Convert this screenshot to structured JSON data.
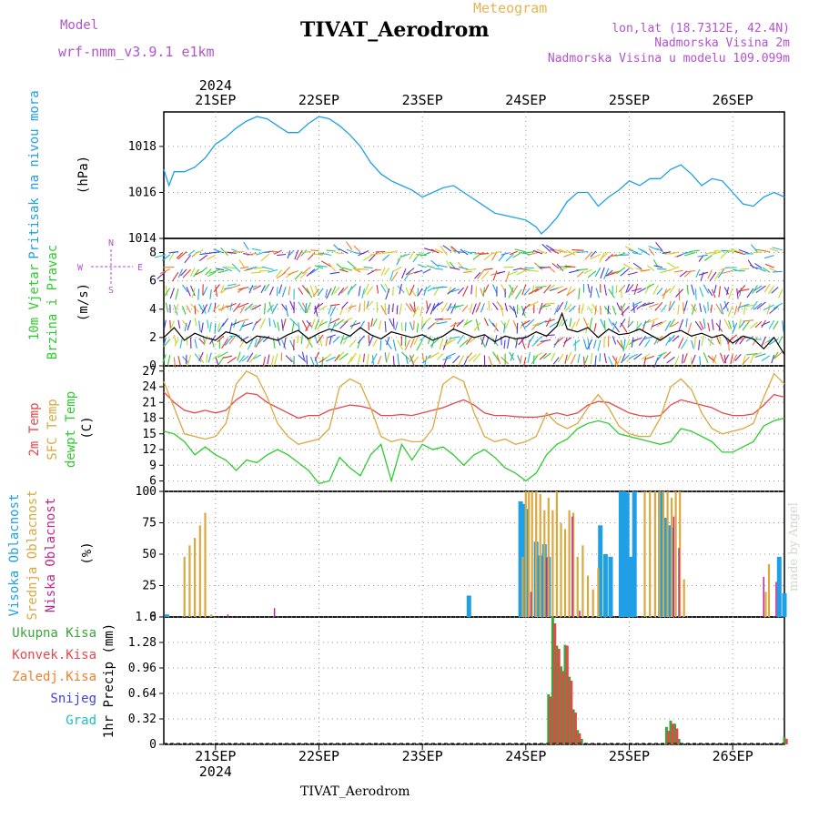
{
  "header": {
    "title": "TIVAT_Aerodrom",
    "meteogram_label": "Meteogram",
    "model_label": "Model",
    "model_name": "wrf-nmm_v3.9.1 e1km",
    "lonlat": "lon,lat (18.7312E, 42.4N)",
    "elevation": "Nadmorska Visina 2m",
    "model_elevation": "Nadmorska Visina u modelu 109.099m",
    "footer_station": "TIVAT_Aerodrom",
    "watermark": "made by Angel"
  },
  "colors": {
    "pressure": "#1fa0e6",
    "wind_speed": "#000000",
    "temp2m": "#e8474a",
    "sfc_temp": "#dba83f",
    "dewpoint": "#2ecc2e",
    "cloud_high": "#1fa0e6",
    "cloud_mid": "#dba83f",
    "cloud_low": "#c0288f",
    "precip_total": "#3aa53a",
    "precip_conv": "#e8474a",
    "precip_frozen": "#f08030",
    "snow": "#4040e0",
    "graupel": "#20c0c0"
  },
  "chart_data": [
    {
      "type": "line",
      "panel": "pressure",
      "ylabel_title": "Pritisak na nivou mora",
      "ylabel_unit": "(hPa)",
      "x_start_day": 20.5,
      "x_end_day": 26.5,
      "ylim": [
        1014,
        1019.5
      ],
      "yticks": [
        "1014",
        "1016",
        "1018"
      ],
      "ytick_values": [
        1014,
        1016,
        1018
      ],
      "x_day": [
        20.5,
        20.55,
        20.6,
        20.7,
        20.8,
        20.9,
        21.0,
        21.1,
        21.2,
        21.3,
        21.4,
        21.5,
        21.6,
        21.7,
        21.8,
        21.9,
        22.0,
        22.1,
        22.2,
        22.3,
        22.4,
        22.5,
        22.6,
        22.7,
        22.8,
        22.9,
        23.0,
        23.1,
        23.2,
        23.3,
        23.4,
        23.5,
        23.6,
        23.7,
        23.8,
        23.9,
        24.0,
        24.1,
        24.15,
        24.2,
        24.3,
        24.4,
        24.5,
        24.6,
        24.7,
        24.8,
        24.9,
        25.0,
        25.1,
        25.2,
        25.3,
        25.4,
        25.5,
        25.6,
        25.7,
        25.8,
        25.9,
        26.0,
        26.1,
        26.2,
        26.3,
        26.4,
        26.5
      ],
      "values": [
        1017.0,
        1016.3,
        1016.9,
        1016.9,
        1017.1,
        1017.5,
        1018.1,
        1018.4,
        1018.8,
        1019.1,
        1019.3,
        1019.2,
        1018.9,
        1018.6,
        1018.6,
        1019.0,
        1019.3,
        1019.2,
        1018.9,
        1018.5,
        1018.0,
        1017.3,
        1016.8,
        1016.5,
        1016.3,
        1016.1,
        1015.8,
        1016.0,
        1016.2,
        1016.3,
        1016.0,
        1015.7,
        1015.4,
        1015.1,
        1015.0,
        1014.9,
        1014.8,
        1014.5,
        1014.2,
        1014.4,
        1014.9,
        1015.6,
        1016.0,
        1016.0,
        1015.4,
        1015.8,
        1016.1,
        1016.5,
        1016.3,
        1016.6,
        1016.6,
        1017.0,
        1017.2,
        1016.8,
        1016.3,
        1016.6,
        1016.5,
        1016.0,
        1015.5,
        1015.4,
        1015.8,
        1016.0,
        1015.8
      ]
    },
    {
      "type": "line",
      "panel": "wind",
      "ylabel_title": "10m Vjetar",
      "ylabel_title2": "Brzina i Pravac",
      "ylabel_unit": "(m/s)",
      "compass": [
        "N",
        "E",
        "S",
        "W"
      ],
      "ylim": [
        0,
        9
      ],
      "yticks": [
        "0",
        "2",
        "4",
        "6",
        "8"
      ],
      "ytick_values": [
        0,
        2,
        4,
        6,
        8
      ],
      "x_day": [
        20.5,
        20.6,
        20.7,
        20.8,
        20.9,
        21.0,
        21.1,
        21.2,
        21.3,
        21.4,
        21.5,
        21.6,
        21.7,
        21.8,
        21.9,
        22.0,
        22.1,
        22.2,
        22.3,
        22.4,
        22.5,
        22.6,
        22.7,
        22.8,
        22.9,
        23.0,
        23.1,
        23.2,
        23.3,
        23.4,
        23.5,
        23.6,
        23.7,
        23.8,
        23.9,
        24.0,
        24.1,
        24.2,
        24.3,
        24.35,
        24.4,
        24.5,
        24.6,
        24.7,
        24.8,
        24.9,
        25.0,
        25.1,
        25.2,
        25.3,
        25.4,
        25.5,
        25.6,
        25.7,
        25.8,
        25.9,
        26.0,
        26.1,
        26.2,
        26.3,
        26.4,
        26.5
      ],
      "values": [
        2.0,
        2.7,
        1.8,
        2.3,
        2.0,
        1.8,
        2.4,
        2.2,
        1.6,
        2.1,
        2.0,
        1.8,
        2.2,
        2.5,
        1.9,
        2.3,
        2.6,
        2.4,
        2.1,
        2.7,
        2.2,
        1.9,
        2.4,
        2.2,
        2.0,
        2.2,
        1.8,
        2.1,
        2.6,
        2.3,
        2.0,
        2.2,
        1.7,
        2.1,
        1.9,
        2.0,
        2.4,
        2.1,
        2.8,
        3.7,
        2.6,
        2.4,
        2.7,
        2.0,
        2.6,
        2.2,
        2.3,
        2.6,
        2.2,
        1.8,
        2.3,
        2.5,
        2.1,
        2.3,
        2.0,
        2.2,
        1.6,
        2.1,
        1.9,
        1.2,
        2.0,
        0.8
      ],
      "barb_colors": [
        "#1fa0e6",
        "#20c0d0",
        "#2ecc2e",
        "#b0e020",
        "#e8c020",
        "#f08030",
        "#e03030",
        "#4040e0",
        "#8020c0"
      ]
    },
    {
      "type": "line",
      "panel": "temperature",
      "legend": [
        "2m Temp",
        "SFC Temp",
        "dewpt Temp"
      ],
      "ylabel_unit": "(C)",
      "ylim": [
        4,
        28
      ],
      "yticks": [
        "6",
        "9",
        "12",
        "15",
        "18",
        "21",
        "24",
        "27"
      ],
      "ytick_values": [
        6,
        9,
        12,
        15,
        18,
        21,
        24,
        27
      ],
      "x_day": [
        20.5,
        20.6,
        20.7,
        20.8,
        20.9,
        21.0,
        21.1,
        21.2,
        21.3,
        21.4,
        21.5,
        21.6,
        21.7,
        21.8,
        21.9,
        22.0,
        22.1,
        22.2,
        22.3,
        22.4,
        22.5,
        22.6,
        22.7,
        22.8,
        22.9,
        23.0,
        23.1,
        23.2,
        23.3,
        23.4,
        23.5,
        23.6,
        23.7,
        23.8,
        23.9,
        24.0,
        24.1,
        24.2,
        24.3,
        24.4,
        24.5,
        24.6,
        24.7,
        24.8,
        24.9,
        25.0,
        25.1,
        25.2,
        25.3,
        25.4,
        25.5,
        25.6,
        25.7,
        25.8,
        25.9,
        26.0,
        26.1,
        26.2,
        26.3,
        26.4,
        26.5
      ],
      "series": [
        {
          "name": "2m Temp",
          "values": [
            23.0,
            21.0,
            19.5,
            19.0,
            19.5,
            19.0,
            19.5,
            21.5,
            22.8,
            22.5,
            21.0,
            20.0,
            19.0,
            18.0,
            18.5,
            18.5,
            19.5,
            20.0,
            20.5,
            20.3,
            19.8,
            18.5,
            18.5,
            18.7,
            18.5,
            19.0,
            19.5,
            20.0,
            20.8,
            21.5,
            20.5,
            19.0,
            18.5,
            18.5,
            18.3,
            18.2,
            18.2,
            18.5,
            19.0,
            18.5,
            19.0,
            20.5,
            21.2,
            21.0,
            20.0,
            19.0,
            18.5,
            18.3,
            18.5,
            20.5,
            21.5,
            21.0,
            20.5,
            20.0,
            19.0,
            18.5,
            18.5,
            18.8,
            20.5,
            22.5,
            22.0
          ]
        },
        {
          "name": "SFC Temp",
          "values": [
            25.0,
            20.0,
            15.0,
            14.5,
            14.0,
            14.5,
            17.0,
            24.5,
            27.0,
            26.0,
            22.0,
            17.0,
            14.5,
            13.0,
            13.5,
            14.0,
            16.0,
            24.0,
            25.5,
            24.5,
            20.0,
            14.5,
            13.5,
            14.0,
            13.5,
            13.5,
            16.0,
            24.5,
            26.0,
            25.0,
            19.0,
            14.5,
            13.5,
            14.0,
            13.0,
            13.5,
            14.5,
            19.0,
            17.0,
            16.0,
            17.0,
            20.0,
            22.5,
            20.0,
            16.5,
            15.0,
            14.5,
            14.5,
            18.0,
            24.0,
            25.5,
            23.5,
            19.0,
            16.0,
            15.0,
            15.5,
            16.0,
            17.0,
            22.0,
            26.5,
            24.5
          ]
        },
        {
          "name": "dewpt Temp",
          "values": [
            15.5,
            15.0,
            13.5,
            11.0,
            12.5,
            11.0,
            10.0,
            8.0,
            10.0,
            9.5,
            11.0,
            12.0,
            11.0,
            9.5,
            8.0,
            5.5,
            6.0,
            10.5,
            8.5,
            7.0,
            11.0,
            13.0,
            6.0,
            13.0,
            10.0,
            13.0,
            12.0,
            12.5,
            11.0,
            9.0,
            11.0,
            12.0,
            10.5,
            8.5,
            7.5,
            6.0,
            7.5,
            11.0,
            13.0,
            14.0,
            16.0,
            17.0,
            17.5,
            17.0,
            15.0,
            14.5,
            14.0,
            13.5,
            13.0,
            13.5,
            16.0,
            15.5,
            14.5,
            13.5,
            11.5,
            11.5,
            12.5,
            13.5,
            16.5,
            17.5,
            18.0
          ]
        }
      ]
    },
    {
      "type": "bar",
      "panel": "clouds",
      "legend": [
        "Visoka Oblacnost",
        "Srednja Oblacnost",
        "Niska Oblacnost"
      ],
      "ylabel_unit": "(%)",
      "ylim": [
        0,
        100
      ],
      "yticks": [
        "0",
        "25",
        "50",
        "75",
        "100"
      ],
      "ytick_values": [
        0,
        25,
        50,
        75,
        100
      ],
      "high": {
        "x_day": [
          20.53,
          23.45,
          23.95,
          23.98,
          24.01,
          24.1,
          24.14,
          24.18,
          24.22,
          24.72,
          24.77,
          24.82,
          24.92,
          24.95,
          24.98,
          25.02,
          25.05,
          25.3,
          25.35,
          25.38,
          25.41,
          26.45,
          26.5
        ],
        "values": [
          2,
          17,
          92,
          90,
          86,
          60,
          49,
          58,
          48,
          73,
          50,
          48,
          100,
          100,
          99,
          48,
          100,
          100,
          79,
          73,
          71,
          48,
          19
        ]
      },
      "mid": {
        "x_day": [
          20.7,
          20.75,
          20.8,
          20.85,
          20.9,
          20.96,
          23.97,
          24.0,
          24.03,
          24.06,
          24.1,
          24.14,
          24.18,
          24.22,
          24.26,
          24.3,
          24.34,
          24.38,
          24.42,
          24.46,
          24.5,
          24.55,
          24.6,
          24.65,
          24.7,
          25.15,
          25.2,
          25.25,
          25.29,
          25.33,
          25.37,
          25.41,
          25.45,
          25.49,
          25.53,
          26.32,
          26.35
        ],
        "values": [
          48,
          57,
          63,
          73,
          83,
          2,
          48,
          100,
          100,
          100,
          100,
          98,
          85,
          95,
          85,
          100,
          75,
          70,
          85,
          83,
          48,
          57,
          33,
          22,
          39,
          100,
          100,
          100,
          100,
          100,
          100,
          95,
          100,
          100,
          30,
          20,
          42
        ]
      },
      "low": {
        "x_day": [
          21.12,
          21.57,
          24.05,
          24.2,
          24.45,
          24.52,
          24.76,
          25.43,
          25.48,
          26.3,
          26.42,
          26.47
        ],
        "values": [
          2,
          7,
          20,
          47,
          80,
          5,
          0,
          80,
          55,
          32,
          28,
          0
        ]
      }
    },
    {
      "type": "bar",
      "panel": "precip",
      "legend": [
        "Ukupna Kisa",
        "Konvek.Kisa",
        "Zaledj.Kisa",
        "Snijeg",
        "Grad"
      ],
      "ylabel_unit": "1hr Precip (mm)",
      "ylim": [
        0,
        1.6
      ],
      "yticks": [
        "0",
        "0.32",
        "0.64",
        "0.96",
        "1.28",
        "1.6"
      ],
      "ytick_values": [
        0,
        0.32,
        0.64,
        0.96,
        1.28,
        1.6
      ],
      "total": {
        "x_day": [
          24.22,
          24.26,
          24.3,
          24.34,
          24.38,
          24.42,
          24.46,
          24.5,
          24.54,
          25.36,
          25.4,
          25.44,
          25.48,
          26.5
        ],
        "values": [
          0.63,
          1.6,
          1.24,
          0.98,
          1.25,
          0.85,
          0.44,
          0.18,
          0.07,
          0.22,
          0.3,
          0.26,
          0.07,
          0.09
        ]
      },
      "convective": {
        "x_day": [
          24.24,
          24.28,
          24.32,
          24.36,
          24.4,
          24.44,
          24.48,
          24.52,
          25.38,
          25.42,
          25.46,
          26.52
        ],
        "values": [
          0.6,
          1.52,
          1.2,
          0.92,
          1.24,
          0.8,
          0.4,
          0.14,
          0.17,
          0.26,
          0.2,
          0.07
        ]
      }
    }
  ],
  "x_axis": {
    "year_top": "2024",
    "year_bottom": "2024",
    "day_labels": [
      "21SEP",
      "22SEP",
      "23SEP",
      "24SEP",
      "25SEP",
      "26SEP"
    ],
    "day_values": [
      21,
      22,
      23,
      24,
      25,
      26
    ]
  }
}
